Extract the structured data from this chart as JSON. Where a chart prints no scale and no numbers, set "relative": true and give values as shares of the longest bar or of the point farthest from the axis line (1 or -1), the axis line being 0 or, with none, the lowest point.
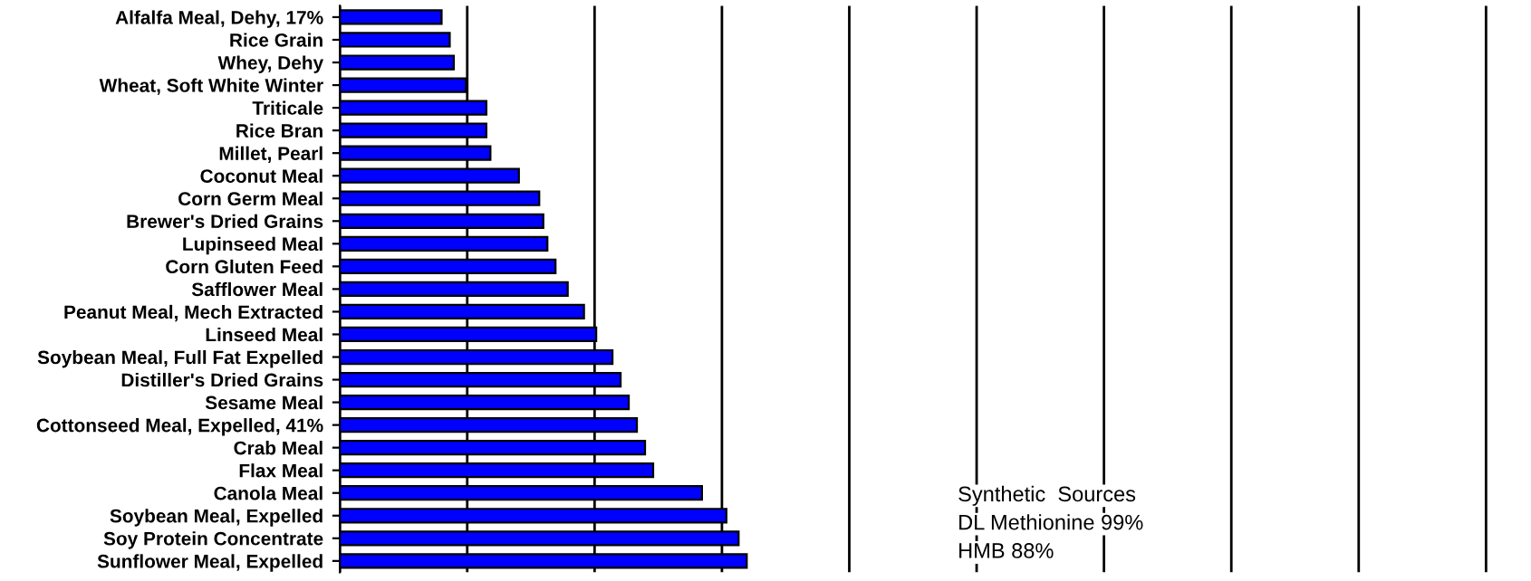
{
  "chart_data": {
    "type": "bar",
    "orientation": "horizontal",
    "relative": true,
    "grid": "x",
    "categories": [
      "Alfalfa Meal, Dehy, 17%",
      "Rice Grain",
      "Whey, Dehy",
      "Wheat, Soft White Winter",
      "Triticale",
      "Rice Bran",
      "Millet, Pearl",
      "Coconut Meal",
      "Corn Germ Meal",
      "Brewer's Dried Grains",
      "Lupinseed Meal",
      "Corn Gluten Feed",
      "Safflower Meal",
      "Peanut Meal, Mech Extracted",
      "Linseed Meal",
      "Soybean Meal, Full Fat Expelled",
      "Distiller's Dried Grains",
      "Sesame Meal",
      "Cottonseed Meal, Expelled, 41%",
      "Crab Meal",
      "Flax Meal",
      "Canola Meal",
      "Soybean Meal, Expelled",
      "Soy Protein Concentrate",
      "Sunflower Meal, Expelled"
    ],
    "series": [
      {
        "color": "#0000ff",
        "values": [
          0.25,
          0.27,
          0.28,
          0.31,
          0.36,
          0.36,
          0.37,
          0.44,
          0.49,
          0.5,
          0.51,
          0.53,
          0.56,
          0.6,
          0.63,
          0.67,
          0.69,
          0.71,
          0.73,
          0.75,
          0.77,
          0.89,
          0.95,
          0.98,
          1
        ]
      }
    ],
    "annotations": [
      "Synthetic  Sources",
      "DL Methionine 99%",
      "HMB 88%"
    ]
  }
}
